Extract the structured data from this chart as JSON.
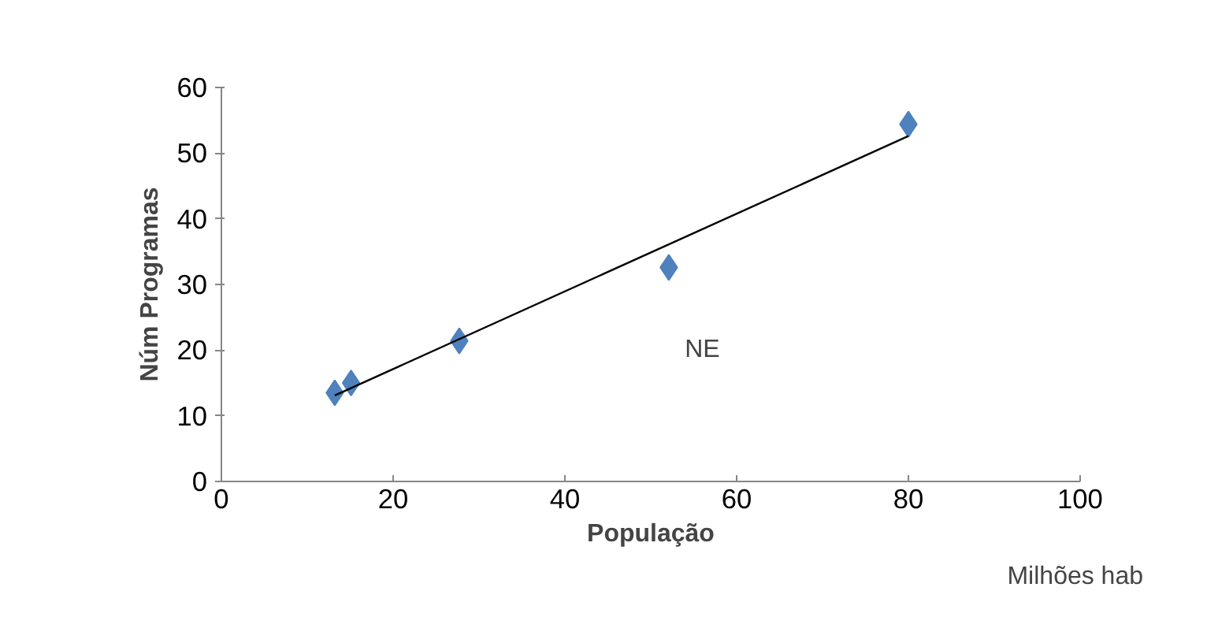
{
  "chart_data": {
    "type": "scatter",
    "xlabel": "População",
    "ylabel": "Núm Programas",
    "annotations": [
      "NE",
      "Milhões hab"
    ],
    "xlim": [
      0,
      100
    ],
    "ylim": [
      0,
      60
    ],
    "xticks": [
      0,
      20,
      40,
      60,
      80,
      100
    ],
    "yticks": [
      0,
      10,
      20,
      30,
      40,
      50,
      60
    ],
    "grid": false,
    "marker": "diamond",
    "series": [
      {
        "color": "#4f81bd",
        "x": [
          13.2,
          15.1,
          27.7,
          52.1,
          80.0
        ],
        "values": [
          13.5,
          15.0,
          21.4,
          32.6,
          54.4
        ]
      },
      {
        "type": "line",
        "color": "#000000",
        "x": [
          13.2,
          80.0
        ],
        "values": [
          13.1,
          52.6
        ],
        "marker": "none",
        "line_style": "solid"
      }
    ]
  }
}
